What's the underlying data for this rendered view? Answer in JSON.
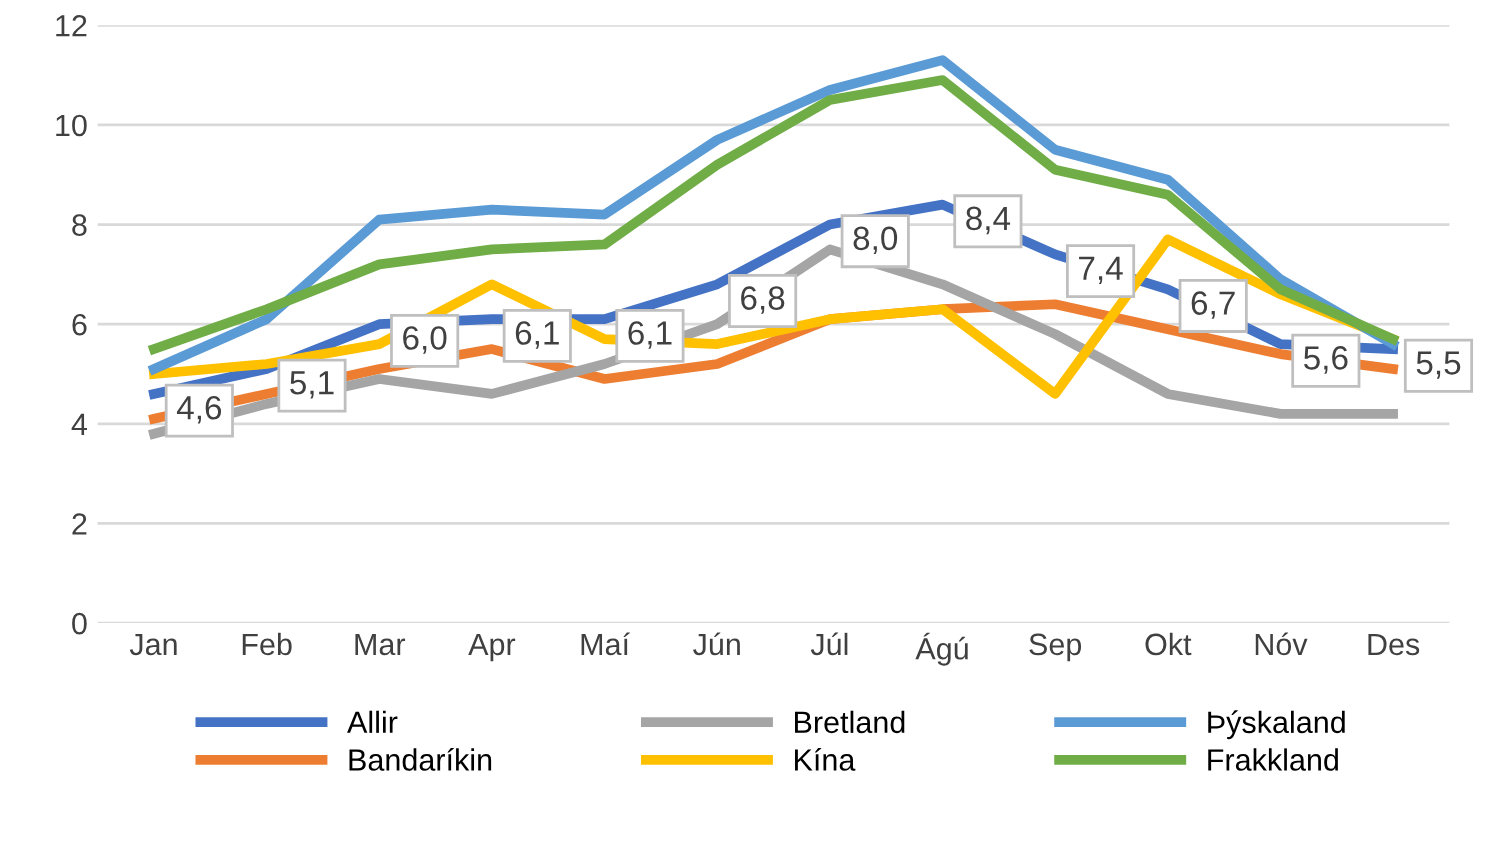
{
  "chart_data": {
    "type": "line",
    "categories": [
      "Jan",
      "Feb",
      "Mar",
      "Apr",
      "Maí",
      "Jún",
      "Júl",
      "Ágú",
      "Sep",
      "Okt",
      "Nóv",
      "Des"
    ],
    "series": [
      {
        "name": "Allir",
        "color": "#4472c4",
        "values": [
          4.6,
          5.1,
          6.0,
          6.1,
          6.1,
          6.8,
          8.0,
          8.4,
          7.4,
          6.7,
          5.6,
          5.5
        ],
        "value_labels": [
          "4,6",
          "5,1",
          "6,0",
          "6,1",
          "6,1",
          "6,8",
          "8,0",
          "8,4",
          "7,4",
          "6,7",
          "5,6",
          "5,5"
        ]
      },
      {
        "name": "Bandaríkin",
        "color": "#ed7d31",
        "values": [
          4.1,
          4.6,
          5.1,
          5.5,
          4.9,
          5.2,
          6.1,
          6.3,
          6.4,
          5.9,
          5.4,
          5.1
        ]
      },
      {
        "name": "Bretland",
        "color": "#a5a5a5",
        "values": [
          3.8,
          4.4,
          4.9,
          4.6,
          5.2,
          6.0,
          7.5,
          6.8,
          5.8,
          4.6,
          4.2,
          4.2
        ]
      },
      {
        "name": "Kína",
        "color": "#ffc000",
        "values": [
          5.0,
          5.2,
          5.6,
          6.8,
          5.7,
          5.6,
          6.1,
          6.3,
          4.6,
          7.7,
          6.6,
          5.7
        ]
      },
      {
        "name": "Þýskaland",
        "color": "#5b9bd5",
        "values": [
          5.1,
          6.1,
          8.1,
          8.3,
          8.2,
          9.7,
          10.7,
          11.3,
          9.5,
          8.9,
          6.9,
          5.6
        ]
      },
      {
        "name": "Frakkland",
        "color": "#70ad47",
        "values": [
          5.5,
          6.3,
          7.2,
          7.5,
          7.6,
          9.2,
          10.5,
          10.9,
          9.1,
          8.6,
          6.7,
          5.7
        ]
      }
    ],
    "ylim": [
      0,
      12
    ],
    "yticks": [
      0,
      2,
      4,
      6,
      8,
      10,
      12
    ],
    "grid": "y",
    "legend": "bottom",
    "marker": "none",
    "line_style": "solid"
  }
}
